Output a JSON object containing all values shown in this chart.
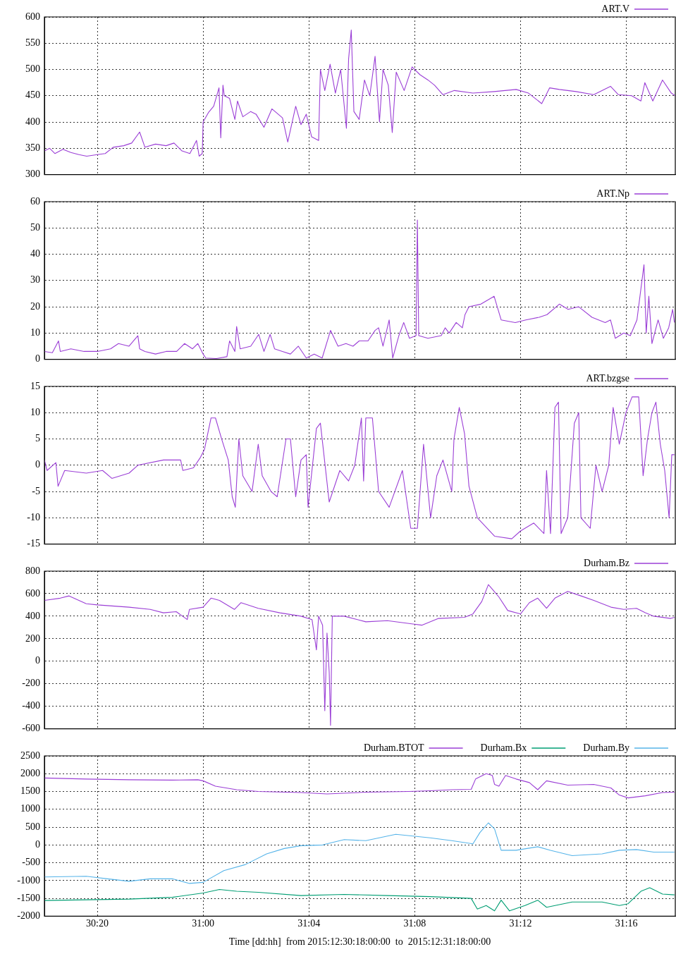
{
  "chart_data": [
    {
      "type": "line",
      "xlim": [
        "2015-12-30T18:00",
        "2015-12-31T17:51"
      ],
      "xticks": [
        {
          "value": "2015-12-30T20:00",
          "label": null
        },
        {
          "value": "2015-12-31T00:00",
          "label": null
        },
        {
          "value": "2015-12-31T04:00",
          "label": null
        },
        {
          "value": "2015-12-31T08:00",
          "label": null
        },
        {
          "value": "2015-12-31T12:00",
          "label": null
        },
        {
          "value": "2015-12-31T16:00",
          "label": null
        }
      ],
      "ylim": [
        300,
        600
      ],
      "yticks": [
        300,
        350,
        400,
        450,
        500,
        550,
        600
      ],
      "grid": true,
      "legend": "top right",
      "tick_labels": "y",
      "series": [
        {
          "name": "ART.V",
          "color": "#9b3fd6",
          "x": [
            "2015-12-30T18:00",
            "2015-12-30T18:12",
            "2015-12-30T18:24",
            "2015-12-30T18:42",
            "2015-12-30T19:00",
            "2015-12-30T19:18",
            "2015-12-30T19:36",
            "2015-12-30T20:00",
            "2015-12-30T20:18",
            "2015-12-30T20:36",
            "2015-12-30T21:00",
            "2015-12-30T21:18",
            "2015-12-30T21:36",
            "2015-12-30T21:48",
            "2015-12-30T22:12",
            "2015-12-30T22:36",
            "2015-12-30T22:54",
            "2015-12-30T23:12",
            "2015-12-30T23:30",
            "2015-12-30T23:45",
            "2015-12-30T23:51",
            "2015-12-30T23:58",
            "2015-12-31T00:00",
            "2015-12-31T00:12",
            "2015-12-31T00:24",
            "2015-12-31T00:36",
            "2015-12-31T00:40",
            "2015-12-31T00:45",
            "2015-12-31T00:48",
            "2015-12-31T01:00",
            "2015-12-31T01:12",
            "2015-12-31T01:18",
            "2015-12-31T01:30",
            "2015-12-31T01:48",
            "2015-12-31T02:00",
            "2015-12-31T02:18",
            "2015-12-31T02:36",
            "2015-12-31T03:00",
            "2015-12-31T03:12",
            "2015-12-31T03:30",
            "2015-12-31T03:42",
            "2015-12-31T03:54",
            "2015-12-31T04:06",
            "2015-12-31T04:22",
            "2015-12-31T04:26",
            "2015-12-31T04:36",
            "2015-12-31T04:48",
            "2015-12-31T05:00",
            "2015-12-31T05:12",
            "2015-12-31T05:25",
            "2015-12-31T05:30",
            "2015-12-31T05:36",
            "2015-12-31T05:42",
            "2015-12-31T05:54",
            "2015-12-31T06:06",
            "2015-12-31T06:18",
            "2015-12-31T06:30",
            "2015-12-31T06:40",
            "2015-12-31T06:48",
            "2015-12-31T07:00",
            "2015-12-31T07:09",
            "2015-12-31T07:18",
            "2015-12-31T07:36",
            "2015-12-31T07:54",
            "2015-12-31T08:12",
            "2015-12-31T08:30",
            "2015-12-31T08:45",
            "2015-12-31T09:04",
            "2015-12-31T09:30",
            "2015-12-31T10:12",
            "2015-12-31T11:00",
            "2015-12-31T11:50",
            "2015-12-31T12:18",
            "2015-12-31T12:48",
            "2015-12-31T13:06",
            "2015-12-31T13:28",
            "2015-12-31T14:06",
            "2015-12-31T14:46",
            "2015-12-31T15:24",
            "2015-12-31T15:42",
            "2015-12-31T16:12",
            "2015-12-31T16:33",
            "2015-12-31T16:42",
            "2015-12-31T17:00",
            "2015-12-31T17:22",
            "2015-12-31T17:42",
            "2015-12-31T17:51"
          ],
          "values": [
            345,
            350,
            340,
            348,
            342,
            338,
            335,
            338,
            340,
            352,
            355,
            360,
            381,
            352,
            358,
            355,
            360,
            345,
            340,
            365,
            335,
            340,
            400,
            418,
            430,
            465,
            370,
            470,
            450,
            445,
            405,
            440,
            410,
            420,
            415,
            390,
            425,
            408,
            362,
            430,
            395,
            415,
            372,
            365,
            500,
            460,
            510,
            455,
            500,
            388,
            520,
            575,
            420,
            405,
            480,
            450,
            525,
            400,
            500,
            470,
            380,
            495,
            460,
            505,
            490,
            480,
            470,
            452,
            460,
            455,
            458,
            462,
            455,
            435,
            465,
            462,
            458,
            452,
            468,
            452,
            450,
            440,
            475,
            440,
            480,
            455,
            450
          ]
        }
      ]
    },
    {
      "type": "line",
      "xlim": [
        "2015-12-30T18:00",
        "2015-12-31T17:51"
      ],
      "xticks": [
        {
          "value": "2015-12-30T20:00",
          "label": null
        },
        {
          "value": "2015-12-31T00:00",
          "label": null
        },
        {
          "value": "2015-12-31T04:00",
          "label": null
        },
        {
          "value": "2015-12-31T08:00",
          "label": null
        },
        {
          "value": "2015-12-31T12:00",
          "label": null
        },
        {
          "value": "2015-12-31T16:00",
          "label": null
        }
      ],
      "ylim": [
        0,
        60
      ],
      "yticks": [
        0,
        10,
        20,
        30,
        40,
        50,
        60
      ],
      "grid": true,
      "legend": "top right",
      "tick_labels": "y",
      "series": [
        {
          "name": "ART.Np",
          "color": "#9b3fd6",
          "x": [
            "2015-12-30T18:00",
            "2015-12-30T18:18",
            "2015-12-30T18:32",
            "2015-12-30T18:36",
            "2015-12-30T19:00",
            "2015-12-30T19:30",
            "2015-12-30T20:00",
            "2015-12-30T20:30",
            "2015-12-30T20:48",
            "2015-12-30T21:12",
            "2015-12-30T21:32",
            "2015-12-30T21:36",
            "2015-12-30T21:48",
            "2015-12-30T22:12",
            "2015-12-30T22:36",
            "2015-12-30T23:00",
            "2015-12-30T23:18",
            "2015-12-30T23:36",
            "2015-12-30T23:48",
            "2015-12-31T00:00",
            "2015-12-31T00:06",
            "2015-12-31T00:30",
            "2015-12-31T00:54",
            "2015-12-31T01:00",
            "2015-12-31T01:12",
            "2015-12-31T01:16",
            "2015-12-31T01:24",
            "2015-12-31T01:48",
            "2015-12-31T02:06",
            "2015-12-31T02:18",
            "2015-12-31T02:32",
            "2015-12-31T02:42",
            "2015-12-31T03:00",
            "2015-12-31T03:18",
            "2015-12-31T03:36",
            "2015-12-31T03:54",
            "2015-12-31T04:12",
            "2015-12-31T04:30",
            "2015-12-31T04:49",
            "2015-12-31T05:06",
            "2015-12-31T05:24",
            "2015-12-31T05:40",
            "2015-12-31T05:54",
            "2015-12-31T06:14",
            "2015-12-31T06:30",
            "2015-12-31T06:38",
            "2015-12-31T06:48",
            "2015-12-31T07:02",
            "2015-12-31T07:10",
            "2015-12-31T07:24",
            "2015-12-31T07:35",
            "2015-12-31T07:48",
            "2015-12-31T08:03",
            "2015-12-31T08:06",
            "2015-12-31T08:09",
            "2015-12-31T08:30",
            "2015-12-31T09:00",
            "2015-12-31T09:09",
            "2015-12-31T09:18",
            "2015-12-31T09:34",
            "2015-12-31T09:48",
            "2015-12-31T09:54",
            "2015-12-31T10:03",
            "2015-12-31T10:30",
            "2015-12-31T11:00",
            "2015-12-31T11:16",
            "2015-12-31T11:48",
            "2015-12-31T12:12",
            "2015-12-31T12:42",
            "2015-12-31T13:00",
            "2015-12-31T13:28",
            "2015-12-31T13:48",
            "2015-12-31T14:12",
            "2015-12-31T14:42",
            "2015-12-31T15:12",
            "2015-12-31T15:24",
            "2015-12-31T15:35",
            "2015-12-31T15:54",
            "2015-12-31T16:09",
            "2015-12-31T16:24",
            "2015-12-31T16:40",
            "2015-12-31T16:45",
            "2015-12-31T16:51",
            "2015-12-31T16:58",
            "2015-12-31T17:12",
            "2015-12-31T17:24",
            "2015-12-31T17:36",
            "2015-12-31T17:45",
            "2015-12-31T17:49"
          ],
          "values": [
            3,
            2.5,
            7,
            3,
            4,
            3,
            3,
            4,
            6,
            5,
            9,
            4,
            3,
            2,
            3,
            3,
            6,
            4,
            6,
            2,
            0.5,
            0.3,
            1,
            7,
            3,
            12.5,
            4,
            5,
            9.5,
            3,
            9.5,
            4,
            3,
            2,
            5,
            0.5,
            2,
            0.5,
            11,
            5,
            6,
            5,
            7,
            7,
            11,
            12,
            5,
            15,
            0.5,
            9,
            14,
            8,
            9,
            53,
            9,
            8,
            9,
            12,
            10,
            14,
            12,
            17,
            20,
            21,
            24,
            15,
            14,
            15,
            16,
            17,
            21,
            19,
            20,
            16,
            14,
            15,
            8,
            10,
            9,
            15,
            36,
            10,
            24,
            6,
            15,
            8,
            12,
            19,
            14
          ]
        }
      ]
    },
    {
      "type": "line",
      "xlim": [
        "2015-12-30T18:00",
        "2015-12-31T17:51"
      ],
      "xticks": [
        {
          "value": "2015-12-30T20:00",
          "label": null
        },
        {
          "value": "2015-12-31T00:00",
          "label": null
        },
        {
          "value": "2015-12-31T04:00",
          "label": null
        },
        {
          "value": "2015-12-31T08:00",
          "label": null
        },
        {
          "value": "2015-12-31T12:00",
          "label": null
        },
        {
          "value": "2015-12-31T16:00",
          "label": null
        }
      ],
      "ylim": [
        -15,
        15
      ],
      "yticks": [
        -15,
        -10,
        -5,
        0,
        5,
        10,
        15
      ],
      "grid": true,
      "legend": "top right",
      "tick_labels": "y",
      "series": [
        {
          "name": "ART.bzgse",
          "color": "#9b3fd6",
          "x": [
            "2015-12-30T18:00",
            "2015-12-30T18:06",
            "2015-12-30T18:26",
            "2015-12-30T18:31",
            "2015-12-30T18:46",
            "2015-12-30T19:35",
            "2015-12-30T20:12",
            "2015-12-30T20:33",
            "2015-12-30T21:12",
            "2015-12-30T21:32",
            "2015-12-30T22:30",
            "2015-12-30T23:09",
            "2015-12-30T23:14",
            "2015-12-30T23:38",
            "2015-12-30T23:54",
            "2015-12-31T00:03",
            "2015-12-31T00:18",
            "2015-12-31T00:28",
            "2015-12-31T00:42",
            "2015-12-31T00:57",
            "2015-12-31T01:06",
            "2015-12-31T01:13",
            "2015-12-31T01:21",
            "2015-12-31T01:30",
            "2015-12-31T01:51",
            "2015-12-31T02:05",
            "2015-12-31T02:14",
            "2015-12-31T02:34",
            "2015-12-31T02:48",
            "2015-12-31T03:08",
            "2015-12-31T03:18",
            "2015-12-31T03:30",
            "2015-12-31T03:42",
            "2015-12-31T03:54",
            "2015-12-31T03:58",
            "2015-12-31T04:17",
            "2015-12-31T04:26",
            "2015-12-31T04:46",
            "2015-12-31T05:10",
            "2015-12-31T05:30",
            "2015-12-31T05:44",
            "2015-12-31T05:59",
            "2015-12-31T06:04",
            "2015-12-31T06:09",
            "2015-12-31T06:24",
            "2015-12-31T06:38",
            "2015-12-31T07:02",
            "2015-12-31T07:32",
            "2015-12-31T07:51",
            "2015-12-31T08:06",
            "2015-12-31T08:20",
            "2015-12-31T08:36",
            "2015-12-31T08:50",
            "2015-12-31T09:04",
            "2015-12-31T09:24",
            "2015-12-31T09:29",
            "2015-12-31T09:41",
            "2015-12-31T09:53",
            "2015-12-31T10:03",
            "2015-12-31T10:22",
            "2015-12-31T11:01",
            "2015-12-31T11:40",
            "2015-12-31T12:00",
            "2015-12-31T12:30",
            "2015-12-31T12:53",
            "2015-12-31T12:59",
            "2015-12-31T13:08",
            "2015-12-31T13:18",
            "2015-12-31T13:26",
            "2015-12-31T13:32",
            "2015-12-31T13:47",
            "2015-12-31T14:02",
            "2015-12-31T14:12",
            "2015-12-31T14:17",
            "2015-12-31T14:38",
            "2015-12-31T14:51",
            "2015-12-31T15:05",
            "2015-12-31T15:20",
            "2015-12-31T15:30",
            "2015-12-31T15:44",
            "2015-12-31T15:59",
            "2015-12-31T16:13",
            "2015-12-31T16:28",
            "2015-12-31T16:38",
            "2015-12-31T16:48",
            "2015-12-31T16:58",
            "2015-12-31T17:07",
            "2015-12-31T17:17",
            "2015-12-31T17:27",
            "2015-12-31T17:37",
            "2015-12-31T17:43",
            "2015-12-31T17:49"
          ],
          "values": [
            1,
            -1,
            0.5,
            -4,
            -1,
            -1.5,
            -1,
            -2.5,
            -1.5,
            0,
            1,
            1,
            -1,
            -0.5,
            1.5,
            3,
            9,
            9,
            5,
            1,
            -6,
            -8,
            5,
            -2,
            -5,
            4,
            -2,
            -5,
            -6,
            5,
            5,
            -6,
            1,
            2,
            -8,
            7,
            8,
            -7,
            -1,
            -3,
            0,
            9,
            -3,
            9,
            9,
            -5,
            -8,
            -1,
            -12,
            -12,
            4,
            -10,
            -2,
            1,
            -5,
            5,
            11,
            6,
            -4,
            -10,
            -13.5,
            -14,
            -12.5,
            -11,
            -13,
            -1,
            -13,
            11,
            12,
            -13,
            -10,
            8,
            10,
            -10,
            -12,
            0,
            -5,
            0,
            11,
            4,
            10,
            13,
            13,
            -2,
            5,
            10,
            12,
            4,
            -1,
            -10,
            2,
            2
          ]
        }
      ]
    },
    {
      "type": "line",
      "xlim": [
        "2015-12-30T18:00",
        "2015-12-31T17:51"
      ],
      "xticks": [
        {
          "value": "2015-12-30T20:00",
          "label": null
        },
        {
          "value": "2015-12-31T00:00",
          "label": null
        },
        {
          "value": "2015-12-31T04:00",
          "label": null
        },
        {
          "value": "2015-12-31T08:00",
          "label": null
        },
        {
          "value": "2015-12-31T12:00",
          "label": null
        },
        {
          "value": "2015-12-31T16:00",
          "label": null
        }
      ],
      "ylim": [
        -600,
        800
      ],
      "yticks": [
        -600,
        -400,
        -200,
        0,
        200,
        400,
        600,
        800
      ],
      "grid": true,
      "legend": "top right",
      "tick_labels": "y",
      "series": [
        {
          "name": "Durham.Bz",
          "color": "#9b3fd6",
          "x": [
            "2015-12-30T18:00",
            "2015-12-30T18:36",
            "2015-12-30T18:56",
            "2015-12-30T19:35",
            "2015-12-30T20:00",
            "2015-12-30T21:12",
            "2015-12-30T22:00",
            "2015-12-30T22:30",
            "2015-12-30T22:59",
            "2015-12-30T23:24",
            "2015-12-30T23:29",
            "2015-12-31T00:00",
            "2015-12-31T00:18",
            "2015-12-31T00:37",
            "2015-12-31T01:11",
            "2015-12-31T01:26",
            "2015-12-31T02:05",
            "2015-12-31T02:54",
            "2015-12-31T03:42",
            "2015-12-31T04:07",
            "2015-12-31T04:17",
            "2015-12-31T04:22",
            "2015-12-31T04:31",
            "2015-12-31T04:36",
            "2015-12-31T04:41",
            "2015-12-31T04:46",
            "2015-12-31T04:49",
            "2015-12-31T04:53",
            "2015-12-31T05:20",
            "2015-12-31T06:09",
            "2015-12-31T06:58",
            "2015-12-31T07:56",
            "2015-12-31T08:16",
            "2015-12-31T08:54",
            "2015-12-31T09:53",
            "2015-12-31T10:12",
            "2015-12-31T10:32",
            "2015-12-31T10:47",
            "2015-12-31T10:56",
            "2015-12-31T11:11",
            "2015-12-31T11:31",
            "2015-12-31T12:00",
            "2015-12-31T12:20",
            "2015-12-31T12:39",
            "2015-12-31T12:59",
            "2015-12-31T13:18",
            "2015-12-31T13:47",
            "2015-12-31T14:17",
            "2015-12-31T14:46",
            "2015-12-31T15:25",
            "2015-12-31T15:54",
            "2015-12-31T16:23",
            "2015-12-31T16:43",
            "2015-12-31T17:02",
            "2015-12-31T17:41",
            "2015-12-31T17:49"
          ],
          "values": [
            540,
            560,
            580,
            510,
            500,
            480,
            460,
            430,
            440,
            370,
            460,
            480,
            560,
            540,
            460,
            520,
            470,
            430,
            400,
            370,
            100,
            400,
            320,
            -440,
            250,
            -100,
            -570,
            400,
            400,
            350,
            360,
            330,
            320,
            380,
            390,
            420,
            530,
            680,
            640,
            570,
            450,
            420,
            520,
            560,
            470,
            560,
            620,
            580,
            540,
            480,
            460,
            470,
            430,
            400,
            380,
            390
          ]
        }
      ]
    },
    {
      "type": "line",
      "xlim": [
        "2015-12-30T18:00",
        "2015-12-31T17:51"
      ],
      "xticks": [
        {
          "value": "2015-12-30T20:00",
          "label": "30:20"
        },
        {
          "value": "2015-12-31T00:00",
          "label": "31:00"
        },
        {
          "value": "2015-12-31T04:00",
          "label": "31:04"
        },
        {
          "value": "2015-12-31T08:00",
          "label": "31:08"
        },
        {
          "value": "2015-12-31T12:00",
          "label": "31:12"
        },
        {
          "value": "2015-12-31T16:00",
          "label": "31:16"
        }
      ],
      "ylim": [
        -2000,
        2500
      ],
      "yticks": [
        -2000,
        -1500,
        -1000,
        -500,
        0,
        500,
        1000,
        1500,
        2000,
        2500
      ],
      "grid": true,
      "legend": "top right",
      "xlabel": "Time [dd:hh]  from 2015:12:30:18:00:00  to  2015:12:31:18:00:00",
      "series": [
        {
          "name": "Durham.BTOT",
          "color": "#9b3fd6",
          "x": [
            "2015-12-30T18:00",
            "2015-12-30T19:35",
            "2015-12-30T21:12",
            "2015-12-30T22:50",
            "2015-12-30T23:48",
            "2015-12-31T00:00",
            "2015-12-31T00:28",
            "2015-12-31T01:16",
            "2015-12-31T02:05",
            "2015-12-31T03:42",
            "2015-12-31T04:41",
            "2015-12-31T06:09",
            "2015-12-31T07:46",
            "2015-12-31T08:35",
            "2015-12-31T09:24",
            "2015-12-31T10:08",
            "2015-12-31T10:18",
            "2015-12-31T10:42",
            "2015-12-31T10:56",
            "2015-12-31T11:01",
            "2015-12-31T11:11",
            "2015-12-31T11:26",
            "2015-12-31T11:50",
            "2015-12-31T12:20",
            "2015-12-31T12:39",
            "2015-12-31T12:59",
            "2015-12-31T13:47",
            "2015-12-31T14:46",
            "2015-12-31T15:25",
            "2015-12-31T15:44",
            "2015-12-31T16:04",
            "2015-12-31T16:43",
            "2015-12-31T17:22",
            "2015-12-31T17:49"
          ],
          "values": [
            1880,
            1850,
            1830,
            1820,
            1830,
            1800,
            1650,
            1550,
            1500,
            1470,
            1430,
            1480,
            1500,
            1520,
            1550,
            1560,
            1850,
            2000,
            1950,
            1700,
            1650,
            1950,
            1850,
            1750,
            1550,
            1800,
            1680,
            1700,
            1600,
            1400,
            1320,
            1380,
            1470,
            1480
          ]
        },
        {
          "name": "Durham.Bx",
          "color": "#009e73",
          "x": [
            "2015-12-30T18:00",
            "2015-12-30T19:35",
            "2015-12-30T21:12",
            "2015-12-30T22:50",
            "2015-12-31T00:00",
            "2015-12-31T00:37",
            "2015-12-31T01:16",
            "2015-12-31T02:05",
            "2015-12-31T03:42",
            "2015-12-31T05:20",
            "2015-12-31T06:58",
            "2015-12-31T08:35",
            "2015-12-31T10:08",
            "2015-12-31T10:22",
            "2015-12-31T10:42",
            "2015-12-31T11:01",
            "2015-12-31T11:16",
            "2015-12-31T11:35",
            "2015-12-31T12:10",
            "2015-12-31T12:39",
            "2015-12-31T12:59",
            "2015-12-31T13:57",
            "2015-12-31T15:05",
            "2015-12-31T15:44",
            "2015-12-31T16:04",
            "2015-12-31T16:33",
            "2015-12-31T16:53",
            "2015-12-31T17:22",
            "2015-12-31T17:49"
          ],
          "values": [
            -1560,
            -1540,
            -1520,
            -1470,
            -1350,
            -1250,
            -1300,
            -1330,
            -1420,
            -1390,
            -1420,
            -1450,
            -1500,
            -1800,
            -1700,
            -1850,
            -1550,
            -1850,
            -1700,
            -1550,
            -1750,
            -1600,
            -1600,
            -1700,
            -1650,
            -1300,
            -1200,
            -1380,
            -1400
          ]
        },
        {
          "name": "Durham.By",
          "color": "#56b4e9",
          "x": [
            "2015-12-30T18:00",
            "2015-12-30T19:35",
            "2015-12-30T20:23",
            "2015-12-30T21:12",
            "2015-12-30T22:00",
            "2015-12-30T22:50",
            "2015-12-30T23:29",
            "2015-12-31T00:00",
            "2015-12-31T00:47",
            "2015-12-31T01:36",
            "2015-12-31T02:24",
            "2015-12-31T03:04",
            "2015-12-31T03:42",
            "2015-12-31T04:31",
            "2015-12-31T05:20",
            "2015-12-31T06:09",
            "2015-12-31T07:17",
            "2015-12-31T07:56",
            "2015-12-31T08:35",
            "2015-12-31T09:24",
            "2015-12-31T10:12",
            "2015-12-31T10:28",
            "2015-12-31T10:47",
            "2015-12-31T11:01",
            "2015-12-31T11:16",
            "2015-12-31T11:50",
            "2015-12-31T12:39",
            "2015-12-31T13:08",
            "2015-12-31T13:57",
            "2015-12-31T15:05",
            "2015-12-31T15:44",
            "2015-12-31T16:23",
            "2015-12-31T17:02",
            "2015-12-31T17:49"
          ],
          "values": [
            -900,
            -880,
            -950,
            -1020,
            -950,
            -950,
            -1080,
            -1050,
            -720,
            -550,
            -250,
            -100,
            -20,
            0,
            150,
            120,
            300,
            250,
            200,
            120,
            30,
            350,
            620,
            450,
            -150,
            -150,
            -50,
            -150,
            -300,
            -250,
            -150,
            -130,
            -200,
            -200
          ]
        }
      ]
    }
  ]
}
